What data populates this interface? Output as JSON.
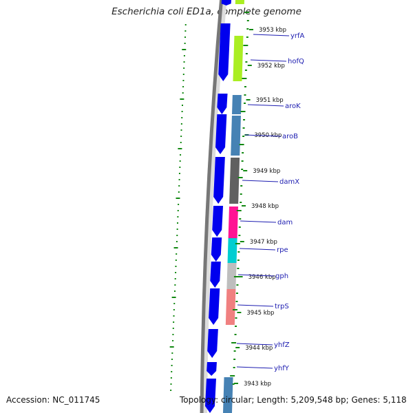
{
  "title": "Escherichia coli ED1a, complete genome",
  "accession": "Accession: NC_011745",
  "topology": "Topology: circular; Length: 5,209,548 bp; Genes: 5,118",
  "colors": {
    "forward_arrow": "#0000ee",
    "backbone": "#777777",
    "backbone_light": "#dddddd",
    "gc_ticks": "#118811",
    "label_line": "#1b1bb0"
  },
  "kbp_labels": [
    "3953 kbp",
    "3952 kbp",
    "3951 kbp",
    "3950 kbp",
    "3949 kbp",
    "3948 kbp",
    "3947 kbp",
    "3946 kbp",
    "3945 kbp",
    "3944 kbp",
    "3943 kbp"
  ],
  "genes": [
    {
      "name": "yrfA",
      "color": "#aaee22"
    },
    {
      "name": "hofQ",
      "color": "#aaee22"
    },
    {
      "name": "aroK",
      "color": "#4682b4"
    },
    {
      "name": "aroB",
      "color": "#4682b4"
    },
    {
      "name": "damX",
      "color": "#606060"
    },
    {
      "name": "dam",
      "color": "#ff1493"
    },
    {
      "name": "rpe",
      "color": "#00ced1"
    },
    {
      "name": "gph",
      "color": "#bebebe"
    },
    {
      "name": "trpS",
      "color": "#f08080"
    },
    {
      "name": "yhfZ",
      "color": ""
    },
    {
      "name": "yhfY",
      "color": ""
    }
  ]
}
